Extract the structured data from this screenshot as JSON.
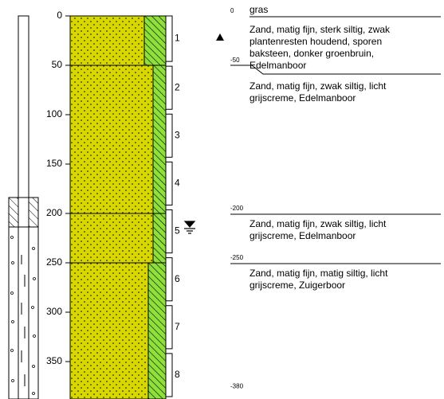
{
  "depth_axis": {
    "ticks": [
      0,
      50,
      100,
      150,
      200,
      250,
      300,
      350
    ]
  },
  "samples": [
    "1",
    "2",
    "3",
    "4",
    "5",
    "6",
    "7",
    "8"
  ],
  "levels": [
    0,
    -50,
    -200,
    -250,
    -380
  ],
  "layers": [
    {
      "name": "gras",
      "description": [
        "Zand, matig fijn, sterk siltig, zwak",
        "plantenresten houdend, sporen",
        "baksteen, donker groenbruin,",
        "Edelmanboor"
      ]
    },
    {
      "description": [
        "Zand, matig fijn, zwak siltig, licht",
        "grijscreme,  Edelmanboor"
      ]
    },
    {
      "description": [
        "Zand, matig fijn, zwak siltig, licht",
        "grijscreme,  Edelmanboor"
      ]
    },
    {
      "description": [
        "Zand, matig fijn, matig siltig, licht",
        "grijscreme, Zuigerboor"
      ]
    }
  ]
}
